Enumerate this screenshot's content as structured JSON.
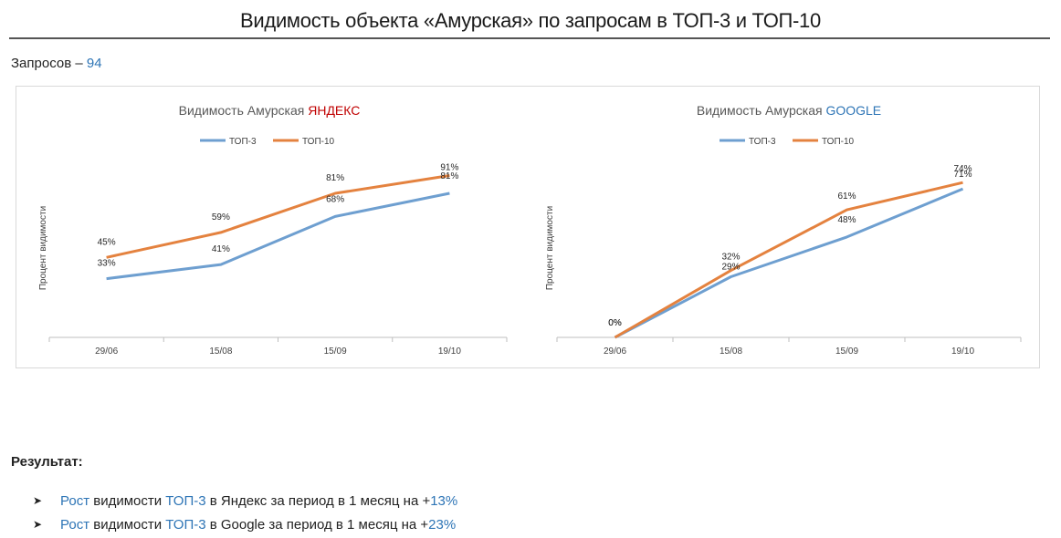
{
  "page": {
    "title": "Видимость объекта «Амурская» по запросам в ТОП-3 и ТОП-10",
    "queries_label": "Запросов –",
    "queries_count": "94"
  },
  "colors": {
    "top3": "#6e9fd0",
    "top10": "#e4823f",
    "accent_blue": "#2e75b6",
    "accent_red": "#c00000"
  },
  "chart_data": [
    {
      "type": "line",
      "title_prefix": "Видимость Амурская",
      "title_brand": "ЯНДЕКС",
      "title_brand_color": "#c00000",
      "ylabel": "Процент видимости",
      "xlabel": "",
      "categories": [
        "29/06",
        "15/08",
        "15/09",
        "19/10"
      ],
      "ylim": [
        0,
        100
      ],
      "legend_position": "top",
      "grid": false,
      "series": [
        {
          "name": "ТОП-3",
          "values": [
            33,
            41,
            68,
            81
          ],
          "labels": [
            "33%",
            "41%",
            "68%",
            "81%"
          ]
        },
        {
          "name": "ТОП-10",
          "values": [
            45,
            59,
            81,
            91
          ],
          "labels": [
            "45%",
            "59%",
            "81%",
            "91%"
          ]
        }
      ]
    },
    {
      "type": "line",
      "title_prefix": "Видимость Амурская",
      "title_brand": "GOOGLE",
      "title_brand_color": "#2e75b6",
      "ylabel": "Процент видимости",
      "xlabel": "",
      "categories": [
        "29/06",
        "15/08",
        "15/09",
        "19/10"
      ],
      "ylim": [
        0,
        85
      ],
      "legend_position": "top",
      "grid": false,
      "series": [
        {
          "name": "ТОП-3",
          "values": [
            0,
            29,
            48,
            71
          ],
          "labels": [
            "0%",
            "29%",
            "48%",
            "71%"
          ]
        },
        {
          "name": "ТОП-10",
          "values": [
            0,
            32,
            61,
            74
          ],
          "labels": [
            "0%",
            "32%",
            "61%",
            "74%"
          ]
        }
      ]
    }
  ],
  "result": {
    "heading": "Результат:",
    "bullets": [
      {
        "w1": "Рост",
        "w2": " видимости ",
        "w3": "ТОП-3",
        "w4": " в Яндекс за период в 1 месяц на +",
        "w5": "13%"
      },
      {
        "w1": "Рост",
        "w2": " видимости ",
        "w3": "ТОП-3",
        "w4": " в Google за период в 1 месяц на +",
        "w5": "23%"
      }
    ]
  }
}
